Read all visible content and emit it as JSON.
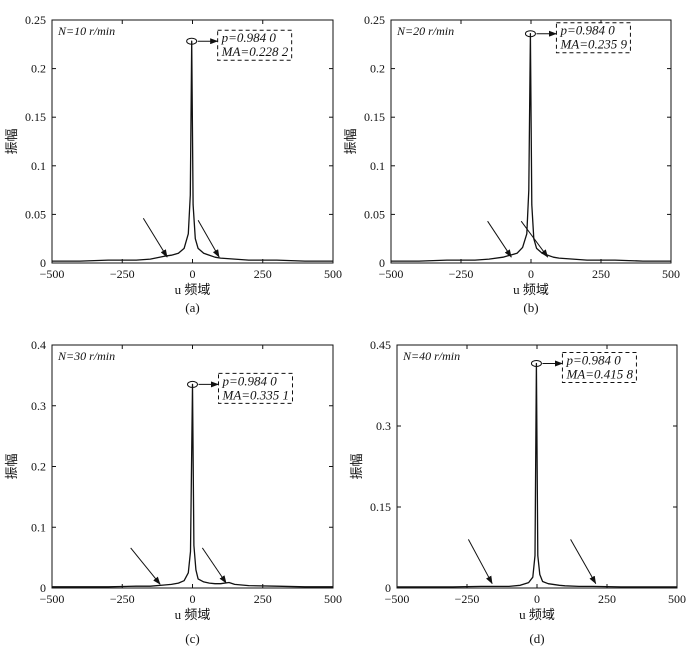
{
  "chart_data": [
    {
      "type": "line",
      "panel_label": "(a)",
      "condition": "N=10 r/min",
      "xlabel": "u 频域",
      "ylabel": "振幅",
      "xlim": [
        -500,
        500
      ],
      "ylim": [
        0,
        0.25
      ],
      "x_ticks": [
        -500,
        -250,
        0,
        250,
        500
      ],
      "y_ticks": [
        0,
        0.05,
        0.1,
        0.15,
        0.2,
        0.25
      ],
      "y_tick_labels": [
        "0",
        "0.05",
        "0.1",
        "0.15",
        "0.2",
        "0.25"
      ],
      "peak": {
        "x": -3,
        "y": 0.2282,
        "p_label": "p=0.984 0",
        "ma_label": "MA=0.228 2"
      },
      "series": [
        {
          "x": [
            -500,
            -400,
            -300,
            -200,
            -150,
            -100,
            -75,
            -50,
            -30,
            -15,
            -8,
            -3,
            2,
            10,
            20,
            40,
            60,
            80,
            100,
            150,
            200,
            300,
            400,
            500
          ],
          "values": [
            0.002,
            0.002,
            0.003,
            0.003,
            0.004,
            0.007,
            0.008,
            0.01,
            0.015,
            0.03,
            0.07,
            0.2282,
            0.06,
            0.025,
            0.015,
            0.01,
            0.008,
            0.006,
            0.005,
            0.004,
            0.003,
            0.003,
            0.002,
            0.002
          ]
        }
      ],
      "arrows": [
        {
          "from": [
            -175,
            0.046
          ],
          "to": [
            -90,
            0.006
          ]
        },
        {
          "from": [
            20,
            0.044
          ],
          "to": [
            95,
            0.006
          ]
        }
      ]
    },
    {
      "type": "line",
      "panel_label": "(b)",
      "condition": "N=20 r/min",
      "xlabel": "u 频域",
      "ylabel": "振幅",
      "xlim": [
        -500,
        500
      ],
      "ylim": [
        0,
        0.25
      ],
      "x_ticks": [
        -500,
        -250,
        0,
        250,
        500
      ],
      "y_ticks": [
        0,
        0.05,
        0.1,
        0.15,
        0.2,
        0.25
      ],
      "y_tick_labels": [
        "0",
        "0.05",
        "0.1",
        "0.15",
        "0.2",
        "0.25"
      ],
      "peak": {
        "x": -2,
        "y": 0.2359,
        "p_label": "p=0.984 0",
        "ma_label": "MA=0.235 9"
      },
      "series": [
        {
          "x": [
            -500,
            -400,
            -300,
            -200,
            -150,
            -100,
            -75,
            -50,
            -30,
            -15,
            -8,
            -2,
            3,
            10,
            20,
            40,
            60,
            80,
            100,
            150,
            200,
            300,
            400,
            500
          ],
          "values": [
            0.002,
            0.002,
            0.003,
            0.003,
            0.004,
            0.006,
            0.008,
            0.01,
            0.016,
            0.03,
            0.075,
            0.2359,
            0.06,
            0.025,
            0.015,
            0.01,
            0.008,
            0.006,
            0.005,
            0.004,
            0.003,
            0.003,
            0.002,
            0.002
          ]
        }
      ],
      "arrows": [
        {
          "from": [
            -155,
            0.043
          ],
          "to": [
            -70,
            0.006
          ]
        },
        {
          "from": [
            -35,
            0.043
          ],
          "to": [
            60,
            0.006
          ]
        }
      ]
    },
    {
      "type": "line",
      "panel_label": "(c)",
      "condition": "N=30 r/min",
      "xlabel": "u 频域",
      "ylabel": "振幅",
      "xlim": [
        -500,
        500
      ],
      "ylim": [
        0,
        0.4
      ],
      "x_ticks": [
        -500,
        -250,
        0,
        250,
        500
      ],
      "y_ticks": [
        0,
        0.1,
        0.2,
        0.3,
        0.4
      ],
      "y_tick_labels": [
        "0",
        "0.1",
        "0.2",
        "0.3",
        "0.4"
      ],
      "peak": {
        "x": 0,
        "y": 0.3351,
        "p_label": "p=0.984 0",
        "ma_label": "MA=0.335 1"
      },
      "series": [
        {
          "x": [
            -500,
            -400,
            -300,
            -200,
            -150,
            -100,
            -75,
            -50,
            -30,
            -15,
            -7,
            0,
            5,
            12,
            20,
            40,
            60,
            80,
            100,
            130,
            150,
            200,
            300,
            400,
            500
          ],
          "values": [
            0.002,
            0.002,
            0.002,
            0.003,
            0.003,
            0.005,
            0.006,
            0.008,
            0.012,
            0.025,
            0.06,
            0.3351,
            0.07,
            0.03,
            0.015,
            0.01,
            0.008,
            0.007,
            0.007,
            0.009,
            0.006,
            0.004,
            0.003,
            0.002,
            0.002
          ]
        }
      ],
      "arrows": [
        {
          "from": [
            -220,
            0.066
          ],
          "to": [
            -115,
            0.006
          ]
        },
        {
          "from": [
            35,
            0.066
          ],
          "to": [
            120,
            0.008
          ]
        }
      ]
    },
    {
      "type": "line",
      "panel_label": "(d)",
      "condition": "N=40 r/min",
      "xlabel": "u 频域",
      "ylabel": "振幅",
      "xlim": [
        -500,
        500
      ],
      "ylim": [
        0,
        0.45
      ],
      "x_ticks": [
        -500,
        -250,
        0,
        250,
        500
      ],
      "y_ticks": [
        0,
        0.15,
        0.3,
        0.45
      ],
      "y_tick_labels": [
        "0",
        "0.15",
        "0.3",
        "0.45"
      ],
      "peak": {
        "x": -2,
        "y": 0.4158,
        "p_label": "p=0.984 0",
        "ma_label": "MA=0.415 8"
      },
      "series": [
        {
          "x": [
            -500,
            -400,
            -300,
            -200,
            -150,
            -100,
            -60,
            -30,
            -15,
            -7,
            -2,
            3,
            10,
            20,
            40,
            80,
            100,
            150,
            200,
            300,
            400,
            500
          ],
          "values": [
            0.002,
            0.002,
            0.002,
            0.003,
            0.003,
            0.003,
            0.005,
            0.01,
            0.02,
            0.06,
            0.4158,
            0.06,
            0.025,
            0.012,
            0.008,
            0.005,
            0.004,
            0.003,
            0.003,
            0.002,
            0.002,
            0.002
          ]
        }
      ],
      "arrows": [
        {
          "from": [
            -245,
            0.09
          ],
          "to": [
            -160,
            0.008
          ]
        },
        {
          "from": [
            120,
            0.09
          ],
          "to": [
            210,
            0.008
          ]
        }
      ]
    }
  ]
}
